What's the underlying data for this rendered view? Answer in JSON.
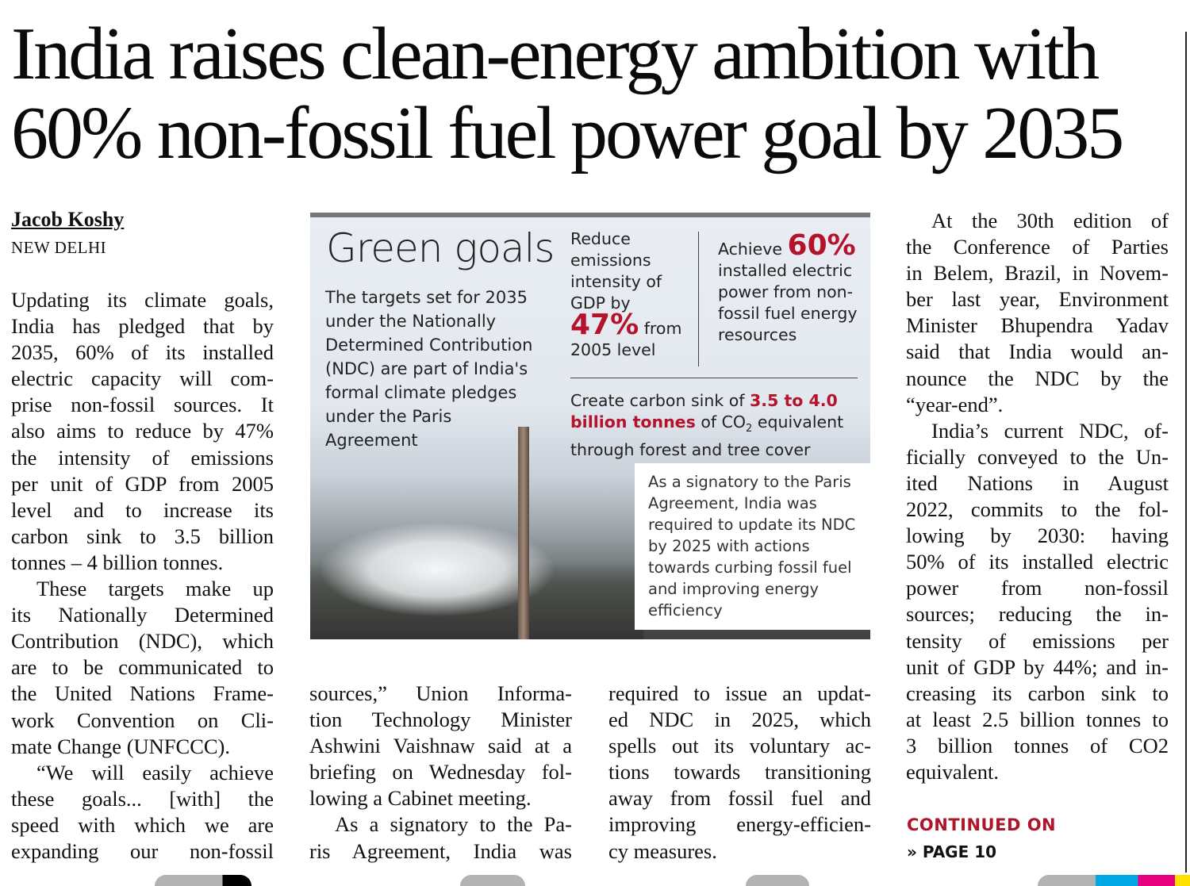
{
  "headline": {
    "line1": "India raises clean-energy ambition with",
    "line2": "60% non-fossil fuel power goal by 2035"
  },
  "byline": "Jacob Koshy",
  "dateline": "NEW DELHI",
  "columns": [
    [
      {
        "t": "Updating its climate goals,"
      },
      {
        "t": "India has pledged that by"
      },
      {
        "t": "2035, 60% of its installed"
      },
      {
        "t": "electric capacity will com-"
      },
      {
        "t": "prise non-fossil sources. It"
      },
      {
        "t": "also aims to reduce by 47%"
      },
      {
        "t": "the intensity of emissions"
      },
      {
        "t": "per unit of GDP from 2005"
      },
      {
        "t": "level and to increase its"
      },
      {
        "t": "carbon sink to 3.5 billion"
      },
      {
        "t": "tonnes – 4 billion tonnes.",
        "last": true
      },
      {
        "t": "These targets make up",
        "ind": true
      },
      {
        "t": "its Nationally Determined"
      },
      {
        "t": "Contribution (NDC), which"
      },
      {
        "t": "are to be communicated to"
      },
      {
        "t": "the United Nations Frame-"
      },
      {
        "t": "work Convention on Cli-"
      },
      {
        "t": "mate Change (UNFCCC).",
        "last": true
      },
      {
        "t": "“We will easily achieve",
        "ind": true
      },
      {
        "t": "these goals... [with] the"
      },
      {
        "t": "speed with which we are"
      },
      {
        "t": "expanding our non-fossil"
      }
    ],
    [
      {
        "t": "sources,” Union Informa-"
      },
      {
        "t": "tion Technology Minister"
      },
      {
        "t": "Ashwini Vaishnaw said at a"
      },
      {
        "t": "briefing on Wednesday fol-"
      },
      {
        "t": "lowing a Cabinet meeting.",
        "last": true
      },
      {
        "t": "As a signatory to the Pa-",
        "ind": true
      },
      {
        "t": "ris Agreement, India was"
      }
    ],
    [
      {
        "t": "required to issue an updat-"
      },
      {
        "t": "ed NDC in 2025, which"
      },
      {
        "t": "spells out its voluntary ac-"
      },
      {
        "t": "tions towards transitioning"
      },
      {
        "t": "away from fossil fuel and"
      },
      {
        "t": "improving energy-efficien-"
      },
      {
        "t": "cy measures.",
        "last": true
      }
    ],
    [
      {
        "t": "At the 30th edition of",
        "ind": true
      },
      {
        "t": "the Conference of Parties"
      },
      {
        "t": "in Belem, Brazil, in Novem-"
      },
      {
        "t": "ber last year, Environment"
      },
      {
        "t": "Minister Bhupendra Yadav"
      },
      {
        "t": "said that India would an-"
      },
      {
        "t": "nounce the NDC by the"
      },
      {
        "t": "“year-end”.",
        "last": true
      },
      {
        "t": "India’s current NDC, of-",
        "ind": true
      },
      {
        "t": "ficially conveyed to the Un-"
      },
      {
        "t": "ited Nations in August"
      },
      {
        "t": "2022, commits to the fol-"
      },
      {
        "t": "lowing by 2030: having"
      },
      {
        "t": "50% of its installed electric"
      },
      {
        "t": "power from non-fossil"
      },
      {
        "t": "sources; reducing the in-"
      },
      {
        "t": "tensity of emissions per"
      },
      {
        "t": "unit of GDP by 44%; and in-"
      },
      {
        "t": "creasing its carbon sink to"
      },
      {
        "t": "at least 2.5 billion tonnes to"
      },
      {
        "t": "3 billion tonnes of CO2"
      },
      {
        "t": "equivalent.",
        "last": true
      }
    ]
  ],
  "continued": {
    "label": "CONTINUED ON",
    "page": "» PAGE 10"
  },
  "infographic": {
    "title": "Green goals",
    "intro": "The targets set for 2035 under  the Nationally Determined Contribution (NDC) are part of India's formal climate pledges under the Paris Agreement",
    "goal1": {
      "pre": "Reduce emissions intensity of GDP by",
      "value": "47%",
      "post_a": "from",
      "post_b": "2005 level"
    },
    "goal2": {
      "pre": "Achieve",
      "value": "60%",
      "post": "installed electric power from non-fossil fuel energy resources"
    },
    "goal3": {
      "pre": "Create carbon sink of",
      "value": "3.5 to 4.0 billion tonnes",
      "mid": "of CO",
      "sub": "2",
      "post": "equivalent through forest and tree cover"
    },
    "note": "As a signatory to the Paris Agreement, India was required to update its NDC by 2025 with actions towards curbing fossil fuel and improving energy efficiency"
  },
  "colors": {
    "accent": "#b5122b",
    "text": "#111111"
  }
}
